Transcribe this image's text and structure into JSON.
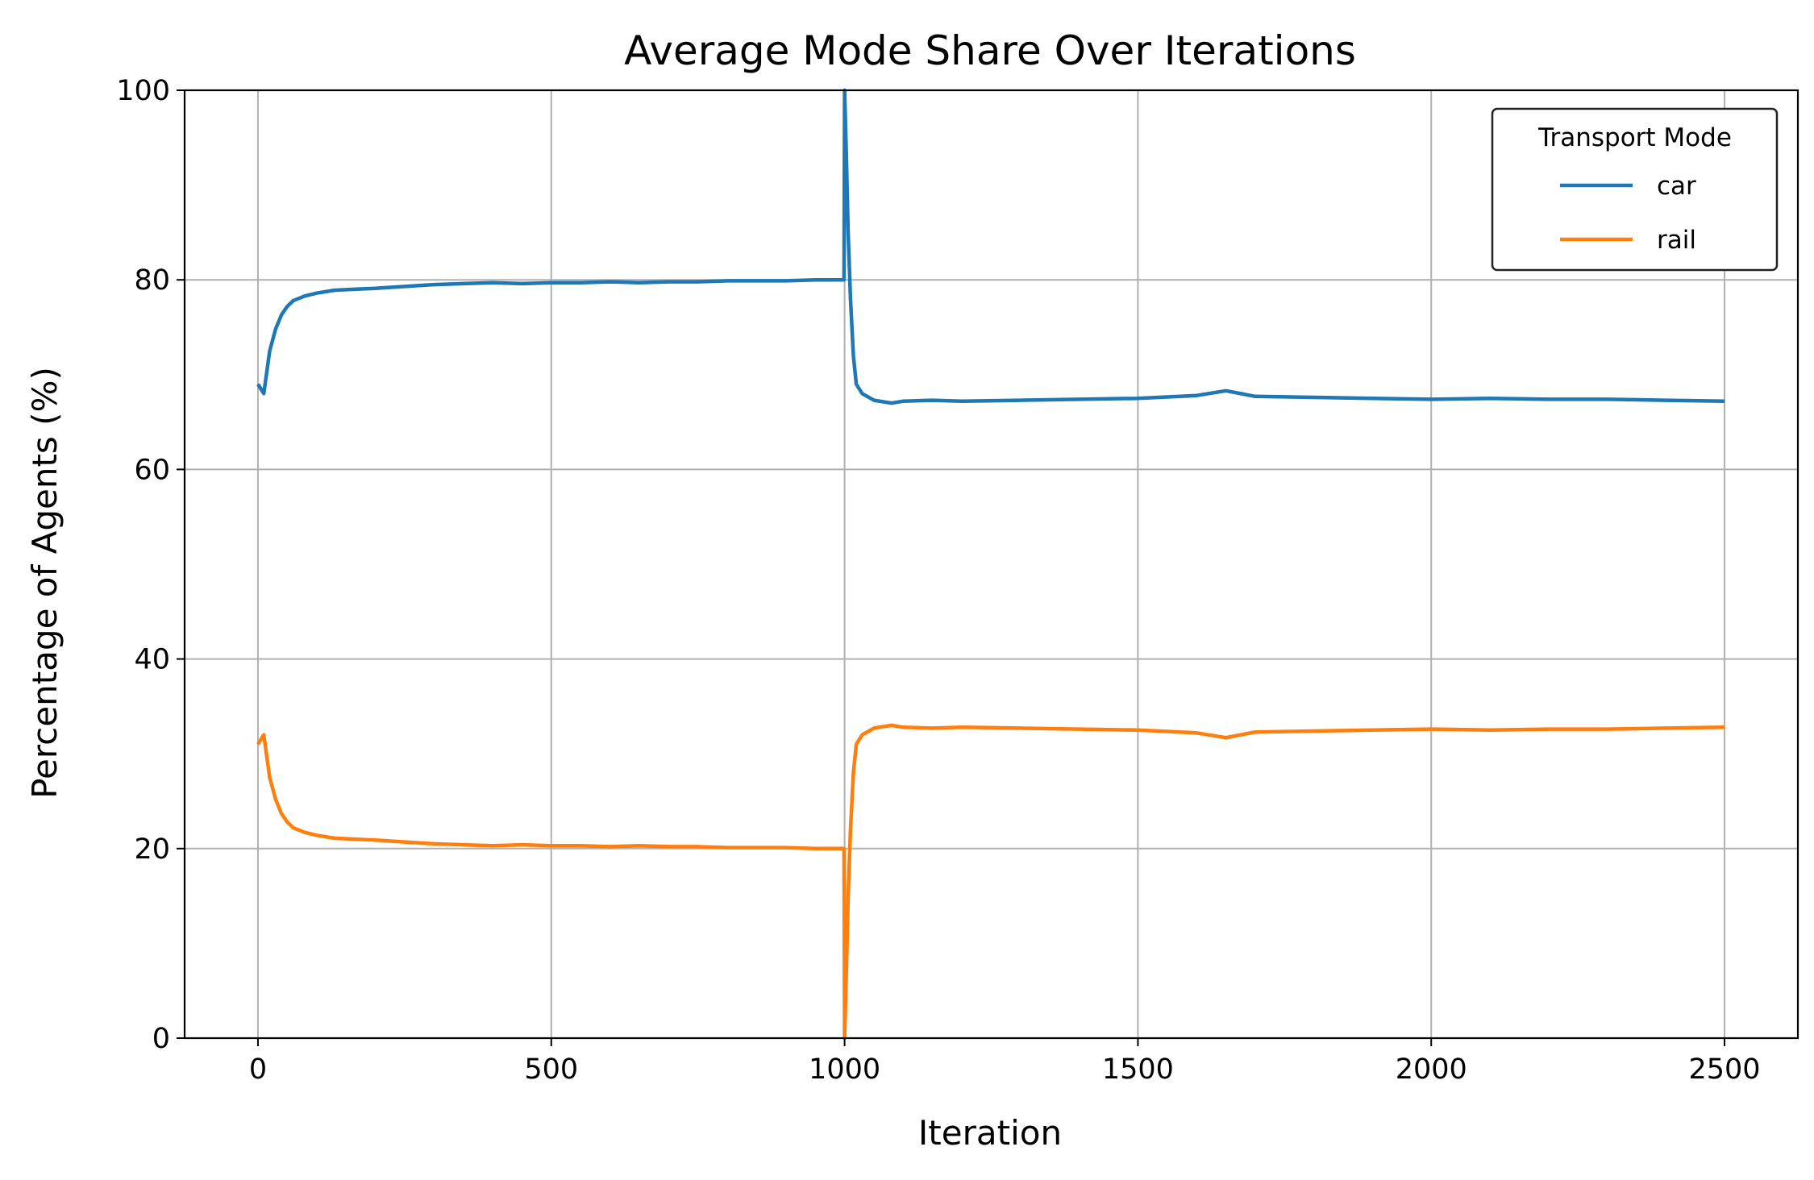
{
  "chart_data": {
    "type": "line",
    "title": "Average Mode Share Over Iterations",
    "xlabel": "Iteration",
    "ylabel": "Percentage of Agents (%)",
    "xlim": [
      -125,
      2625
    ],
    "ylim": [
      0,
      100
    ],
    "xticks": [
      0,
      500,
      1000,
      1500,
      2000,
      2500
    ],
    "yticks": [
      0,
      20,
      40,
      60,
      80,
      100
    ],
    "grid": true,
    "legend": {
      "title": "Transport Mode",
      "position": "top-right"
    },
    "series": [
      {
        "name": "car",
        "color": "#1f77b4",
        "x": [
          0,
          10,
          20,
          30,
          40,
          50,
          60,
          80,
          100,
          130,
          160,
          200,
          250,
          300,
          350,
          400,
          450,
          500,
          550,
          600,
          650,
          700,
          750,
          800,
          850,
          900,
          950,
          995,
          999,
          1000,
          1003,
          1006,
          1010,
          1015,
          1020,
          1030,
          1050,
          1080,
          1100,
          1150,
          1200,
          1300,
          1400,
          1500,
          1600,
          1650,
          1700,
          1800,
          1900,
          2000,
          2100,
          2200,
          2300,
          2400,
          2500
        ],
        "y": [
          69.0,
          68.0,
          72.5,
          74.8,
          76.3,
          77.2,
          77.8,
          78.3,
          78.6,
          78.9,
          79.0,
          79.1,
          79.3,
          79.5,
          79.6,
          79.7,
          79.6,
          79.7,
          79.7,
          79.8,
          79.7,
          79.8,
          79.8,
          79.9,
          79.9,
          79.9,
          80.0,
          80.0,
          80.0,
          100.0,
          93.0,
          85.0,
          78.0,
          72.0,
          69.0,
          68.0,
          67.3,
          67.0,
          67.2,
          67.3,
          67.2,
          67.3,
          67.4,
          67.5,
          67.8,
          68.3,
          67.7,
          67.6,
          67.5,
          67.4,
          67.5,
          67.4,
          67.4,
          67.3,
          67.2
        ]
      },
      {
        "name": "rail",
        "color": "#ff7f0e",
        "x": [
          0,
          10,
          20,
          30,
          40,
          50,
          60,
          80,
          100,
          130,
          160,
          200,
          250,
          300,
          350,
          400,
          450,
          500,
          550,
          600,
          650,
          700,
          750,
          800,
          850,
          900,
          950,
          995,
          999,
          1000,
          1003,
          1006,
          1010,
          1015,
          1020,
          1030,
          1050,
          1080,
          1100,
          1150,
          1200,
          1300,
          1400,
          1500,
          1600,
          1650,
          1700,
          1800,
          1900,
          2000,
          2100,
          2200,
          2300,
          2400,
          2500
        ],
        "y": [
          31.0,
          32.0,
          27.5,
          25.2,
          23.7,
          22.8,
          22.2,
          21.7,
          21.4,
          21.1,
          21.0,
          20.9,
          20.7,
          20.5,
          20.4,
          20.3,
          20.4,
          20.3,
          20.3,
          20.2,
          20.3,
          20.2,
          20.2,
          20.1,
          20.1,
          20.1,
          20.0,
          20.0,
          20.0,
          0.0,
          7.0,
          15.0,
          22.0,
          28.0,
          31.0,
          32.0,
          32.7,
          33.0,
          32.8,
          32.7,
          32.8,
          32.7,
          32.6,
          32.5,
          32.2,
          31.7,
          32.3,
          32.4,
          32.5,
          32.6,
          32.5,
          32.6,
          32.6,
          32.7,
          32.8
        ]
      }
    ]
  }
}
